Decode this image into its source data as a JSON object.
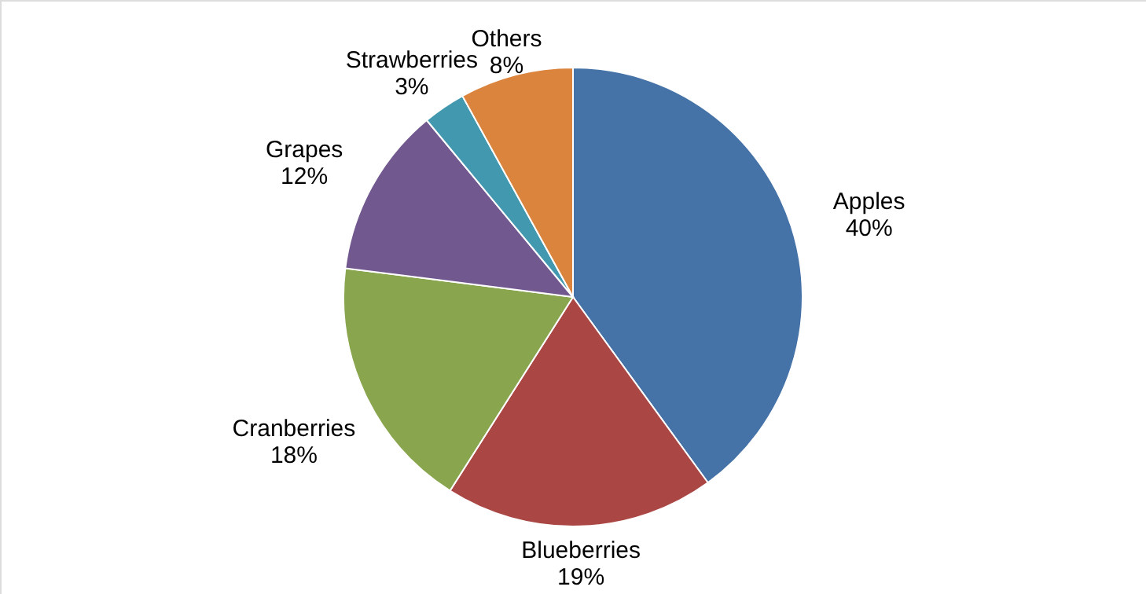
{
  "chart_data": {
    "type": "pie",
    "categories": [
      "Apples",
      "Blueberries",
      "Cranberries",
      "Grapes",
      "Strawberries",
      "Others"
    ],
    "values": [
      40,
      19,
      18,
      12,
      3,
      8
    ],
    "value_labels": [
      "40%",
      "19%",
      "18%",
      "12%",
      "3%",
      "8%"
    ],
    "colors": [
      "#4572a7",
      "#aa4643",
      "#89a54e",
      "#71588f",
      "#4198af",
      "#db843d"
    ],
    "legend": false
  }
}
